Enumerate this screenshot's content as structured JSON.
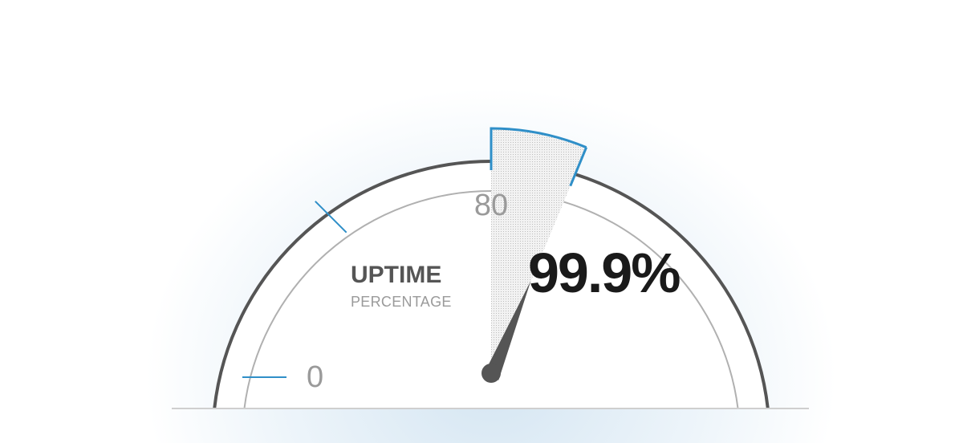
{
  "chart_data": {
    "type": "gauge",
    "title": "UPTIME",
    "subtitle": "PERCENTAGE",
    "value": 99.9,
    "value_label": "99.9%",
    "band": [
      80,
      100
    ],
    "ticks": [
      {
        "value": 0,
        "label": "0"
      },
      {
        "value": 40,
        "label": ""
      },
      {
        "value": 80,
        "label": "80"
      }
    ],
    "scale_min": 0,
    "scale_max": 160,
    "colors": {
      "accent": "#2f8fc8",
      "outline": "#555555",
      "needle": "#555555",
      "band_fill": "#e6e6e6"
    }
  }
}
